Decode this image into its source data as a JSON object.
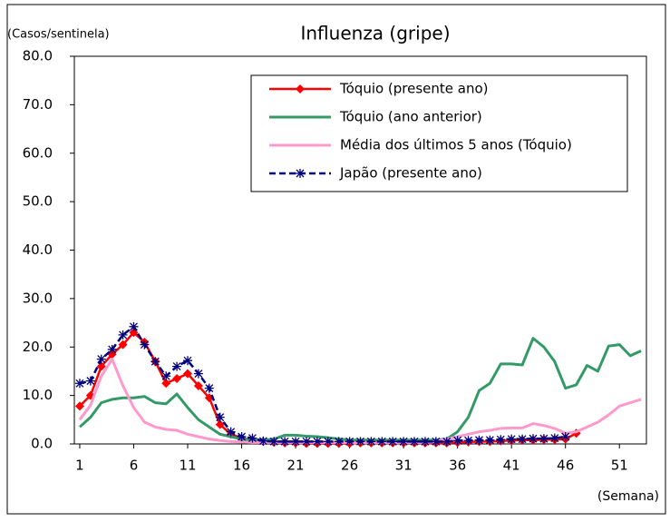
{
  "chart_data": {
    "type": "line",
    "title": "Influenza (gripe)",
    "y_label": "(Casos/sentinela)",
    "x_label": "(Semana)",
    "x": [
      1,
      2,
      3,
      4,
      5,
      6,
      7,
      8,
      9,
      10,
      11,
      12,
      13,
      14,
      15,
      16,
      17,
      18,
      19,
      20,
      21,
      22,
      23,
      24,
      25,
      26,
      27,
      28,
      29,
      30,
      31,
      32,
      33,
      34,
      35,
      36,
      37,
      38,
      39,
      40,
      41,
      42,
      43,
      44,
      45,
      46,
      47,
      48,
      49,
      50,
      51,
      52,
      53
    ],
    "xlim": [
      0.5,
      53.5
    ],
    "xticks": [
      1,
      6,
      11,
      16,
      21,
      26,
      31,
      36,
      41,
      46,
      51
    ],
    "ylim": [
      0,
      80
    ],
    "yticks": [
      {
        "value": 0,
        "label": "0.0"
      },
      {
        "value": 10,
        "label": "10.0"
      },
      {
        "value": 20,
        "label": "20.0"
      },
      {
        "value": 30,
        "label": "30.0"
      },
      {
        "value": 40,
        "label": "40.0"
      },
      {
        "value": 50,
        "label": "50.0"
      },
      {
        "value": 60,
        "label": "60.0"
      },
      {
        "value": 70,
        "label": "70.0"
      },
      {
        "value": 80,
        "label": "80.0"
      }
    ],
    "grid": false,
    "legend": "upper right",
    "series": [
      {
        "name": "Tóquio (presente ano)",
        "color": "#ff0000",
        "marker": "diamond",
        "values": [
          7.8,
          10,
          16,
          18.5,
          20.5,
          23,
          21,
          17,
          12.5,
          13.5,
          14.5,
          12,
          9.5,
          4,
          2,
          1.2,
          0.8,
          0.5,
          0.3,
          0.2,
          0.2,
          0.1,
          0.1,
          0.1,
          0.1,
          0.1,
          0.2,
          0.2,
          0.2,
          0.2,
          0.2,
          0.2,
          0.2,
          0.2,
          0.2,
          0.3,
          0.4,
          0.5,
          0.5,
          0.6,
          0.7,
          0.8,
          0.8,
          0.9,
          0.9,
          1.0,
          2.2,
          null,
          null,
          null,
          null,
          null,
          null
        ]
      },
      {
        "name": "Tóquio (ano anterior)",
        "color": "#339966",
        "marker": "none",
        "values": [
          3.5,
          5.5,
          8.5,
          9.2,
          9.5,
          9.5,
          9.8,
          8.5,
          8.3,
          10.3,
          7.5,
          5,
          3.5,
          2,
          1.5,
          1,
          0.8,
          0.8,
          1,
          1.8,
          1.8,
          1.6,
          1.5,
          1.3,
          1,
          0.8,
          0.8,
          0.8,
          0.8,
          0.8,
          0.8,
          0.8,
          0.8,
          0.8,
          1,
          2.5,
          5.5,
          11,
          12.5,
          16.5,
          16.5,
          16.3,
          21.8,
          20,
          17,
          11.5,
          12.2,
          16.2,
          15,
          20.2,
          20.5,
          18.2,
          19.2
        ]
      },
      {
        "name": "Média dos últimos 5 anos (Tóquio)",
        "color": "#ff99cc",
        "marker": "none",
        "values": [
          5,
          8,
          14,
          17.5,
          12,
          7.5,
          4.5,
          3.5,
          3,
          2.8,
          2,
          1.5,
          1,
          0.7,
          0.5,
          0.4,
          0.3,
          0.3,
          0.3,
          0.3,
          0.3,
          0.3,
          0.3,
          0.3,
          0.3,
          0.3,
          0.3,
          0.3,
          0.3,
          0.3,
          0.3,
          0.3,
          0.3,
          0.5,
          1,
          1.5,
          2,
          2.5,
          2.8,
          3.2,
          3.3,
          3.3,
          4.2,
          3.8,
          3.2,
          2.2,
          2.5,
          3.5,
          4.5,
          6,
          7.8,
          8.5,
          9.2
        ]
      },
      {
        "name": "Japão (presente ano)",
        "color": "#000080",
        "marker": "star",
        "dashed": true,
        "values": [
          12.5,
          13,
          17.5,
          19.5,
          22.5,
          24.2,
          20.5,
          17,
          14,
          16,
          17.2,
          14.5,
          11.5,
          5.5,
          2.5,
          1.5,
          1.2,
          0.6,
          0.5,
          0.5,
          0.5,
          0.5,
          0.5,
          0.5,
          0.5,
          0.5,
          0.5,
          0.5,
          0.5,
          0.5,
          0.5,
          0.5,
          0.5,
          0.5,
          0.5,
          0.7,
          0.7,
          0.8,
          0.8,
          0.9,
          1,
          1,
          1.1,
          1.1,
          1.2,
          1.5,
          null,
          null,
          null,
          null,
          null,
          null,
          null
        ]
      }
    ]
  }
}
